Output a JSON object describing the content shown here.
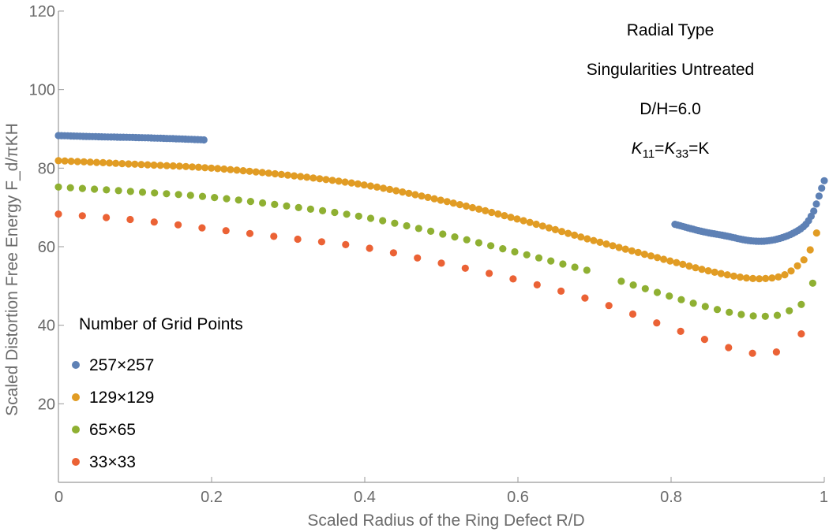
{
  "chart_data": {
    "type": "scatter",
    "title": "",
    "xlabel": "Scaled Radius of the Ring Defect R/D",
    "ylabel": "Scaled Distortion Free Energy F_d/πKH",
    "xlim": [
      0,
      1
    ],
    "ylim": [
      0,
      120
    ],
    "x_ticks": [
      0,
      0.2,
      0.4,
      0.6,
      0.8,
      1
    ],
    "x_tick_labels": [
      "0",
      "0.2",
      "0.4",
      "0.6",
      "0.8",
      "1"
    ],
    "y_ticks": [
      20,
      40,
      60,
      80,
      100,
      120
    ],
    "y_tick_labels": [
      "20",
      "40",
      "60",
      "80",
      "100",
      "120"
    ],
    "grid": false,
    "annotations": [
      "Radial Type",
      "Singularities Untreated",
      "D/H=6.0"
    ],
    "elastic_note": {
      "k1_sym": "K",
      "k1_sub": "11",
      "eq1": "=",
      "k2_sym": "K",
      "k2_sub": "33",
      "eq2": "=K"
    },
    "legend": {
      "title": "Number of Grid Points",
      "placement": "bottom-left"
    },
    "series": [
      {
        "name": "257×257",
        "color": "#5e81b5",
        "segments": [
          {
            "x_start": 0.0,
            "x_end": 0.19,
            "count": 48,
            "anchors": [
              [
                0.0,
                88.3
              ],
              [
                0.05,
                88.0
              ],
              [
                0.1,
                87.8
              ],
              [
                0.15,
                87.5
              ],
              [
                0.19,
                87.2
              ]
            ]
          },
          {
            "x_start": 0.805,
            "x_end": 1.0,
            "count": 58,
            "anchors": [
              [
                0.805,
                65.7
              ],
              [
                0.84,
                63.9
              ],
              [
                0.87,
                62.8
              ],
              [
                0.9,
                61.6
              ],
              [
                0.92,
                61.4
              ],
              [
                0.94,
                62.0
              ],
              [
                0.96,
                63.5
              ],
              [
                0.975,
                65.5
              ],
              [
                0.985,
                68.5
              ],
              [
                0.99,
                71.0
              ],
              [
                0.995,
                74.0
              ],
              [
                1.0,
                76.8
              ]
            ]
          }
        ]
      },
      {
        "name": "129×129",
        "color": "#e19c24",
        "segments": [
          {
            "x_start": 0.0,
            "x_end": 0.99,
            "count": 120,
            "anchors": [
              [
                0.0,
                81.9
              ],
              [
                0.1,
                81.0
              ],
              [
                0.2,
                80.0
              ],
              [
                0.3,
                78.2
              ],
              [
                0.4,
                75.7
              ],
              [
                0.5,
                71.8
              ],
              [
                0.6,
                67.0
              ],
              [
                0.7,
                61.5
              ],
              [
                0.8,
                56.3
              ],
              [
                0.85,
                53.8
              ],
              [
                0.9,
                52.0
              ],
              [
                0.93,
                52.0
              ],
              [
                0.95,
                53.0
              ],
              [
                0.97,
                56.0
              ],
              [
                0.98,
                58.5
              ],
              [
                0.99,
                63.5
              ]
            ]
          }
        ]
      },
      {
        "name": "65×65",
        "color": "#8fb032",
        "segments": [
          {
            "x_start": 0.0,
            "x_end": 0.69,
            "count": 45,
            "anchors": [
              [
                0.0,
                75.2
              ],
              [
                0.1,
                74.0
              ],
              [
                0.2,
                72.6
              ],
              [
                0.3,
                70.3
              ],
              [
                0.4,
                67.5
              ],
              [
                0.5,
                63.3
              ],
              [
                0.6,
                58.5
              ],
              [
                0.69,
                54.0
              ]
            ]
          },
          {
            "x_start": 0.735,
            "x_end": 0.97,
            "count": 16,
            "anchors": [
              [
                0.735,
                51.2
              ],
              [
                0.8,
                47.3
              ],
              [
                0.85,
                44.5
              ],
              [
                0.9,
                42.5
              ],
              [
                0.935,
                42.4
              ],
              [
                0.95,
                43.3
              ],
              [
                0.97,
                45.3
              ]
            ]
          },
          {
            "x_start": 0.985,
            "x_end": 0.985,
            "count": 1,
            "anchors": [
              [
                0.985,
                50.7
              ]
            ]
          }
        ]
      },
      {
        "name": "33×33",
        "color": "#eb6235",
        "segments": [
          {
            "x_start": 0.0,
            "x_end": 0.9375,
            "count": 31,
            "anchors": [
              [
                0.0,
                68.3
              ],
              [
                0.1,
                66.8
              ],
              [
                0.2,
                64.5
              ],
              [
                0.3,
                62.2
              ],
              [
                0.4,
                59.8
              ],
              [
                0.5,
                55.8
              ],
              [
                0.6,
                51.5
              ],
              [
                0.7,
                46.2
              ],
              [
                0.8,
                39.3
              ],
              [
                0.85,
                36.0
              ],
              [
                0.9,
                33.0
              ],
              [
                0.9375,
                33.2
              ]
            ]
          },
          {
            "x_start": 0.97,
            "x_end": 0.97,
            "count": 1,
            "anchors": [
              [
                0.97,
                37.8
              ]
            ]
          }
        ]
      }
    ]
  }
}
